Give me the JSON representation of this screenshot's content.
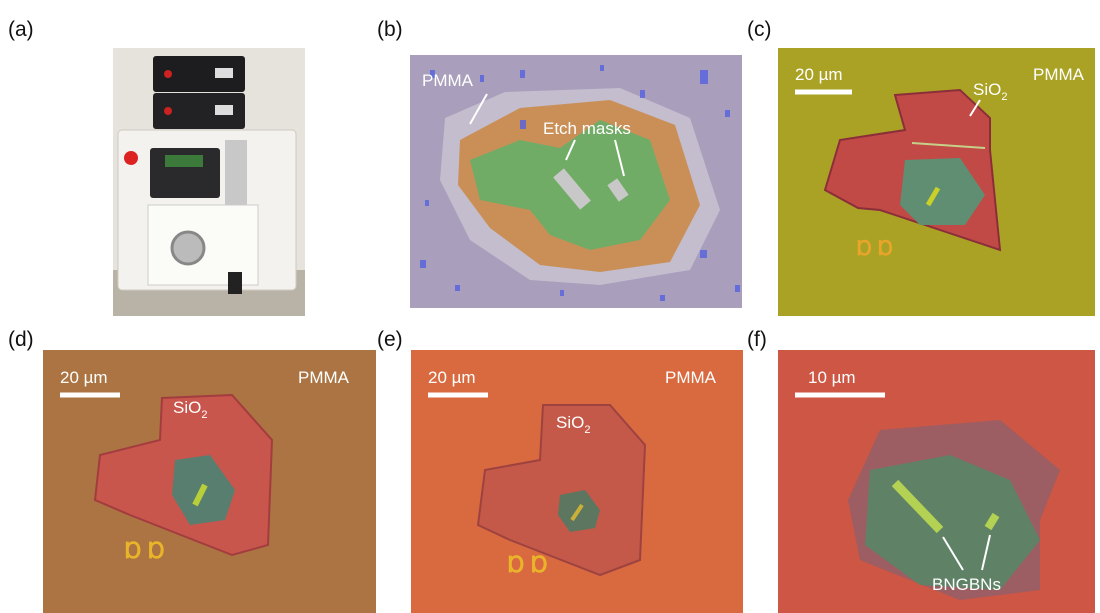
{
  "panels": [
    {
      "label": "(a)"
    },
    {
      "label": "(b)",
      "pmma": "PMMA",
      "etch_masks": "Etch masks"
    },
    {
      "label": "(c)",
      "scale_bar": "20 µm",
      "sio2": {
        "text": "SiO",
        "sub": "2"
      },
      "pmma": "PMMA"
    },
    {
      "label": "(d)",
      "scale_bar": "20 µm",
      "sio2": {
        "text": "SiO",
        "sub": "2"
      },
      "pmma": "PMMA"
    },
    {
      "label": "(e)",
      "scale_bar": "20 µm",
      "sio2": {
        "text": "SiO",
        "sub": "2"
      },
      "pmma": "PMMA"
    },
    {
      "label": "(f)",
      "scale_bar": "10 µm",
      "bngbns": "BNGBNs"
    }
  ]
}
